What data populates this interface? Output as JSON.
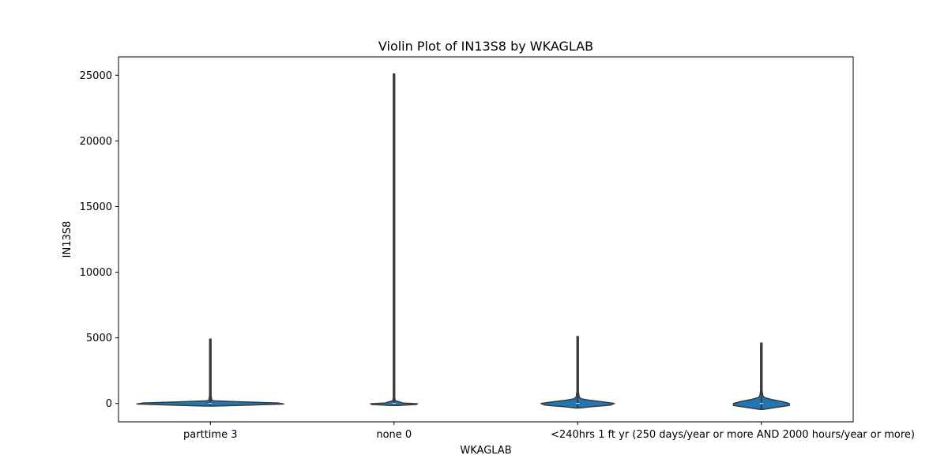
{
  "chart_data": {
    "type": "violin",
    "title": "Violin Plot of IN13S8 by WKAGLAB",
    "xlabel": "WKAGLAB",
    "ylabel": "IN13S8",
    "categories": [
      "parttime 3",
      "none 0",
      "<240hrs 1",
      "ft yr (250 days/year or more AND 2000 hours/year or more)"
    ],
    "ylim": [
      -1400,
      26400
    ],
    "yticks": [
      0,
      5000,
      10000,
      15000,
      20000,
      25000
    ],
    "grid": false,
    "violin_color": "#1f77b4",
    "edge_color": "#3a3a3a",
    "groups": [
      {
        "category": "parttime 3",
        "min": -200,
        "max": 4900,
        "profile": [
          [
            -200,
            0.05
          ],
          [
            -120,
            0.55
          ],
          [
            -40,
            1.0
          ],
          [
            40,
            0.92
          ],
          [
            120,
            0.45
          ],
          [
            200,
            0.05
          ],
          [
            260,
            0.02
          ],
          [
            600,
            0.01
          ],
          [
            4900,
            0.01
          ]
        ]
      },
      {
        "category": "none 0",
        "min": -150,
        "max": 25100,
        "profile": [
          [
            -150,
            0.05
          ],
          [
            -80,
            0.3
          ],
          [
            -20,
            0.32
          ],
          [
            40,
            0.12
          ],
          [
            110,
            0.08
          ],
          [
            200,
            0.02
          ],
          [
            400,
            0.01
          ],
          [
            25100,
            0.01
          ]
        ]
      },
      {
        "category": "<240hrs 1",
        "min": -350,
        "max": 5100,
        "profile": [
          [
            -350,
            0.02
          ],
          [
            -250,
            0.18
          ],
          [
            -120,
            0.45
          ],
          [
            0,
            0.5
          ],
          [
            120,
            0.35
          ],
          [
            250,
            0.16
          ],
          [
            350,
            0.05
          ],
          [
            500,
            0.02
          ],
          [
            900,
            0.01
          ],
          [
            5100,
            0.01
          ]
        ]
      },
      {
        "category": "ft yr (250 days/year or more AND 2000 hours/year or more)",
        "min": -450,
        "max": 4600,
        "profile": [
          [
            -450,
            0.02
          ],
          [
            -320,
            0.18
          ],
          [
            -150,
            0.38
          ],
          [
            0,
            0.38
          ],
          [
            150,
            0.28
          ],
          [
            300,
            0.14
          ],
          [
            450,
            0.04
          ],
          [
            600,
            0.02
          ],
          [
            1000,
            0.01
          ],
          [
            4600,
            0.01
          ]
        ]
      }
    ]
  }
}
